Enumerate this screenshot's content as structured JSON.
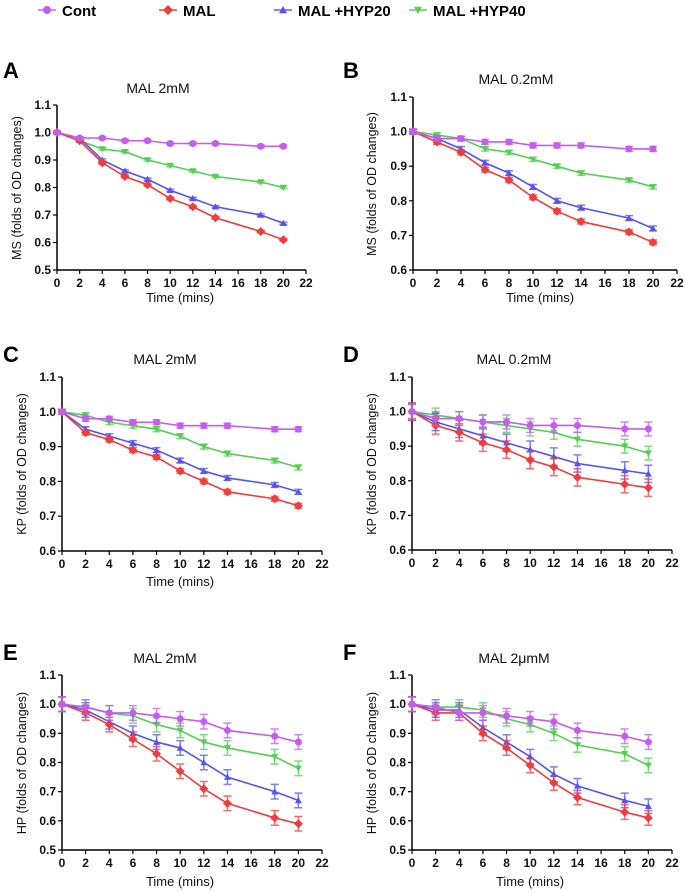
{
  "legend": [
    {
      "name": "Cont",
      "color": "#c45cf0",
      "marker": "circle"
    },
    {
      "name": "MAL",
      "color": "#f03c3c",
      "marker": "diamond"
    },
    {
      "name": "MAL +HYP20",
      "color": "#5454f0",
      "marker": "triangle-up"
    },
    {
      "name": "MAL +HYP40",
      "color": "#52d052",
      "marker": "triangle-down"
    }
  ],
  "chart_data": [
    {
      "type": "line",
      "panel": "A",
      "title": "MAL 2mM",
      "xlabel": "Time (mins)",
      "ylabel": "MS (folds of OD changes)",
      "xlim": [
        0,
        22
      ],
      "xticks": [
        0,
        2,
        4,
        6,
        8,
        10,
        12,
        14,
        16,
        18,
        20,
        22
      ],
      "ylim": [
        0.5,
        1.1
      ],
      "yticks": [
        0.5,
        0.6,
        0.7,
        0.8,
        0.9,
        1.0,
        1.1
      ],
      "x": [
        0,
        2,
        4,
        6,
        8,
        10,
        12,
        14,
        18,
        20
      ],
      "series": [
        {
          "name": "Cont",
          "values": [
            1.0,
            0.98,
            0.98,
            0.97,
            0.97,
            0.96,
            0.96,
            0.96,
            0.95,
            0.95
          ],
          "error": 0.005
        },
        {
          "name": "MAL",
          "values": [
            1.0,
            0.97,
            0.89,
            0.84,
            0.81,
            0.76,
            0.73,
            0.69,
            0.64,
            0.61
          ],
          "error": 0.005
        },
        {
          "name": "MAL +HYP20",
          "values": [
            1.0,
            0.98,
            0.9,
            0.86,
            0.83,
            0.79,
            0.76,
            0.73,
            0.7,
            0.67
          ],
          "error": 0.004
        },
        {
          "name": "MAL +HYP40",
          "values": [
            1.0,
            0.97,
            0.94,
            0.93,
            0.9,
            0.88,
            0.86,
            0.84,
            0.82,
            0.8
          ],
          "error": 0.004
        }
      ]
    },
    {
      "type": "line",
      "panel": "B",
      "title": "MAL 0.2mM",
      "xlabel": "Time (mins)",
      "ylabel": "MS (folds of OD changes)",
      "xlim": [
        0,
        22
      ],
      "xticks": [
        0,
        2,
        4,
        6,
        8,
        10,
        12,
        14,
        16,
        18,
        20,
        22
      ],
      "ylim": [
        0.6,
        1.1
      ],
      "yticks": [
        0.6,
        0.7,
        0.8,
        0.9,
        1.0,
        1.1
      ],
      "x": [
        0,
        2,
        4,
        6,
        8,
        10,
        12,
        14,
        18,
        20
      ],
      "series": [
        {
          "name": "Cont",
          "values": [
            1.0,
            0.98,
            0.98,
            0.97,
            0.97,
            0.96,
            0.96,
            0.96,
            0.95,
            0.95
          ],
          "error": 0.007
        },
        {
          "name": "MAL",
          "values": [
            1.0,
            0.97,
            0.94,
            0.89,
            0.86,
            0.81,
            0.77,
            0.74,
            0.71,
            0.68
          ],
          "error": 0.007
        },
        {
          "name": "MAL +HYP20",
          "values": [
            1.0,
            0.98,
            0.95,
            0.91,
            0.88,
            0.84,
            0.8,
            0.78,
            0.75,
            0.72
          ],
          "error": 0.007
        },
        {
          "name": "MAL +HYP40",
          "values": [
            1.0,
            0.99,
            0.98,
            0.95,
            0.94,
            0.92,
            0.9,
            0.88,
            0.86,
            0.84
          ],
          "error": 0.006
        }
      ]
    },
    {
      "type": "line",
      "panel": "C",
      "title": "MAL 2mM",
      "xlabel": "Time (mins)",
      "ylabel": "KP (folds of OD changes)",
      "xlim": [
        0,
        22
      ],
      "xticks": [
        0,
        2,
        4,
        6,
        8,
        10,
        12,
        14,
        16,
        18,
        20,
        22
      ],
      "ylim": [
        0.6,
        1.1
      ],
      "yticks": [
        0.6,
        0.7,
        0.8,
        0.9,
        1.0,
        1.1
      ],
      "x": [
        0,
        2,
        4,
        6,
        8,
        10,
        12,
        14,
        18,
        20
      ],
      "series": [
        {
          "name": "Cont",
          "values": [
            1.0,
            0.98,
            0.98,
            0.97,
            0.97,
            0.96,
            0.96,
            0.96,
            0.95,
            0.95
          ],
          "error": 0.007
        },
        {
          "name": "MAL",
          "values": [
            1.0,
            0.94,
            0.92,
            0.89,
            0.87,
            0.83,
            0.8,
            0.77,
            0.75,
            0.73
          ],
          "error": 0.007
        },
        {
          "name": "MAL +HYP20",
          "values": [
            1.0,
            0.95,
            0.93,
            0.91,
            0.89,
            0.86,
            0.83,
            0.81,
            0.79,
            0.77
          ],
          "error": 0.007
        },
        {
          "name": "MAL +HYP40",
          "values": [
            1.0,
            0.99,
            0.97,
            0.96,
            0.95,
            0.93,
            0.9,
            0.88,
            0.86,
            0.84
          ],
          "error": 0.007
        }
      ]
    },
    {
      "type": "line",
      "panel": "D",
      "title": "MAL 0.2mM",
      "xlabel": "",
      "ylabel": "KP (folds of OD changes)",
      "xlim": [
        0,
        22
      ],
      "xticks": [
        0,
        2,
        4,
        6,
        8,
        10,
        12,
        14,
        16,
        18,
        20,
        22
      ],
      "ylim": [
        0.6,
        1.1
      ],
      "yticks": [
        0.6,
        0.7,
        0.8,
        0.9,
        1.0,
        1.1
      ],
      "x": [
        0,
        2,
        4,
        6,
        8,
        10,
        12,
        14,
        18,
        20
      ],
      "series": [
        {
          "name": "Cont",
          "values": [
            1.0,
            0.98,
            0.98,
            0.97,
            0.97,
            0.96,
            0.96,
            0.96,
            0.95,
            0.95
          ],
          "error": 0.02
        },
        {
          "name": "MAL",
          "values": [
            1.0,
            0.96,
            0.94,
            0.91,
            0.89,
            0.86,
            0.84,
            0.81,
            0.79,
            0.78
          ],
          "error": 0.025
        },
        {
          "name": "MAL +HYP20",
          "values": [
            1.0,
            0.97,
            0.95,
            0.93,
            0.91,
            0.89,
            0.87,
            0.85,
            0.83,
            0.82
          ],
          "error": 0.025
        },
        {
          "name": "MAL +HYP40",
          "values": [
            1.0,
            0.99,
            0.98,
            0.97,
            0.96,
            0.95,
            0.94,
            0.92,
            0.9,
            0.88
          ],
          "error": 0.02
        }
      ]
    },
    {
      "type": "line",
      "panel": "E",
      "title": "MAL 2mM",
      "xlabel": "Time (mins)",
      "ylabel": "HP (folds of OD changes)",
      "xlim": [
        0,
        22
      ],
      "xticks": [
        0,
        2,
        4,
        6,
        8,
        10,
        12,
        14,
        16,
        18,
        20,
        22
      ],
      "ylim": [
        0.5,
        1.1
      ],
      "yticks": [
        0.5,
        0.6,
        0.7,
        0.8,
        0.9,
        1.0,
        1.1
      ],
      "x": [
        0,
        2,
        4,
        6,
        8,
        10,
        12,
        14,
        18,
        20
      ],
      "series": [
        {
          "name": "Cont",
          "values": [
            1.0,
            0.99,
            0.97,
            0.97,
            0.96,
            0.95,
            0.94,
            0.91,
            0.89,
            0.87
          ],
          "error": 0.025
        },
        {
          "name": "MAL",
          "values": [
            1.0,
            0.97,
            0.93,
            0.88,
            0.83,
            0.77,
            0.71,
            0.66,
            0.61,
            0.59
          ],
          "error": 0.025
        },
        {
          "name": "MAL +HYP20",
          "values": [
            1.0,
            0.98,
            0.94,
            0.9,
            0.87,
            0.85,
            0.8,
            0.75,
            0.7,
            0.67
          ],
          "error": 0.025
        },
        {
          "name": "MAL +HYP40",
          "values": [
            1.0,
            0.99,
            0.97,
            0.96,
            0.93,
            0.91,
            0.87,
            0.85,
            0.82,
            0.78
          ],
          "error": 0.025
        }
      ]
    },
    {
      "type": "line",
      "panel": "F",
      "title": "MAL 2μmM",
      "xlabel": "Time (mins)",
      "ylabel": "HP (folds of OD changes)",
      "xlim": [
        0,
        22
      ],
      "xticks": [
        0,
        2,
        4,
        6,
        8,
        10,
        12,
        14,
        16,
        18,
        20,
        22
      ],
      "ylim": [
        0.5,
        1.1
      ],
      "yticks": [
        0.5,
        0.6,
        0.7,
        0.8,
        0.9,
        1.0,
        1.1
      ],
      "x": [
        0,
        2,
        4,
        6,
        8,
        10,
        12,
        14,
        18,
        20
      ],
      "series": [
        {
          "name": "Cont",
          "values": [
            1.0,
            0.99,
            0.97,
            0.97,
            0.96,
            0.95,
            0.94,
            0.91,
            0.89,
            0.87
          ],
          "error": 0.025
        },
        {
          "name": "MAL",
          "values": [
            1.0,
            0.97,
            0.97,
            0.9,
            0.85,
            0.79,
            0.73,
            0.68,
            0.63,
            0.61
          ],
          "error": 0.025
        },
        {
          "name": "MAL +HYP20",
          "values": [
            1.0,
            0.98,
            0.98,
            0.92,
            0.87,
            0.82,
            0.76,
            0.72,
            0.67,
            0.65
          ],
          "error": 0.025
        },
        {
          "name": "MAL +HYP40",
          "values": [
            1.0,
            0.99,
            0.99,
            0.98,
            0.95,
            0.93,
            0.9,
            0.86,
            0.83,
            0.79
          ],
          "error": 0.025
        }
      ]
    }
  ]
}
